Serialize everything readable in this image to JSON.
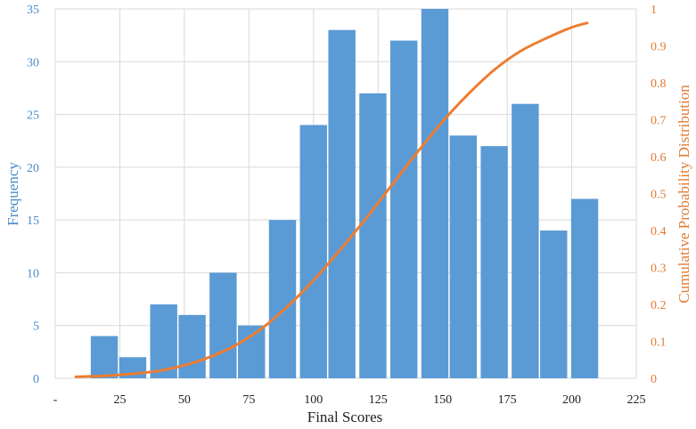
{
  "chart_data": {
    "type": "bar",
    "xlabel": "Final Scores",
    "ylabel": "Frequency",
    "y2label": "Cumulative Probability Distribution",
    "xlim": [
      0,
      225
    ],
    "ylim": [
      0,
      35
    ],
    "y2lim": [
      0,
      1
    ],
    "x_ticks": [
      "-",
      "25",
      "50",
      "75",
      "100",
      "125",
      "150",
      "175",
      "200",
      "225"
    ],
    "y_ticks": [
      "0",
      "5",
      "10",
      "15",
      "20",
      "25",
      "30",
      "35"
    ],
    "y2_ticks": [
      "0",
      "0.1",
      "0.2",
      "0.3",
      "0.4",
      "0.5",
      "0.6",
      "0.7",
      "0.8",
      "0.9",
      "1"
    ],
    "grid": true,
    "bar_width": 10.5,
    "bar_color": "#5b9bd5",
    "line_color": "#ed7d31",
    "series": [
      {
        "type": "bar",
        "axis": "left",
        "x": [
          19,
          30,
          42,
          53,
          65,
          76,
          88,
          100,
          111,
          123,
          135,
          147,
          158,
          170,
          182,
          193,
          205
        ],
        "values": [
          4,
          2,
          7,
          6,
          10,
          5,
          15,
          24,
          33,
          27,
          32,
          35,
          23,
          22,
          26,
          14,
          17
        ]
      },
      {
        "type": "line",
        "axis": "right",
        "x": [
          8,
          20,
          30,
          40,
          50,
          60,
          70,
          80,
          90,
          100,
          110,
          120,
          130,
          140,
          150,
          160,
          170,
          180,
          190,
          200,
          206
        ],
        "values": [
          0.004,
          0.007,
          0.012,
          0.02,
          0.035,
          0.058,
          0.09,
          0.135,
          0.195,
          0.265,
          0.345,
          0.43,
          0.52,
          0.61,
          0.695,
          0.77,
          0.835,
          0.885,
          0.92,
          0.95,
          0.962
        ]
      }
    ]
  }
}
